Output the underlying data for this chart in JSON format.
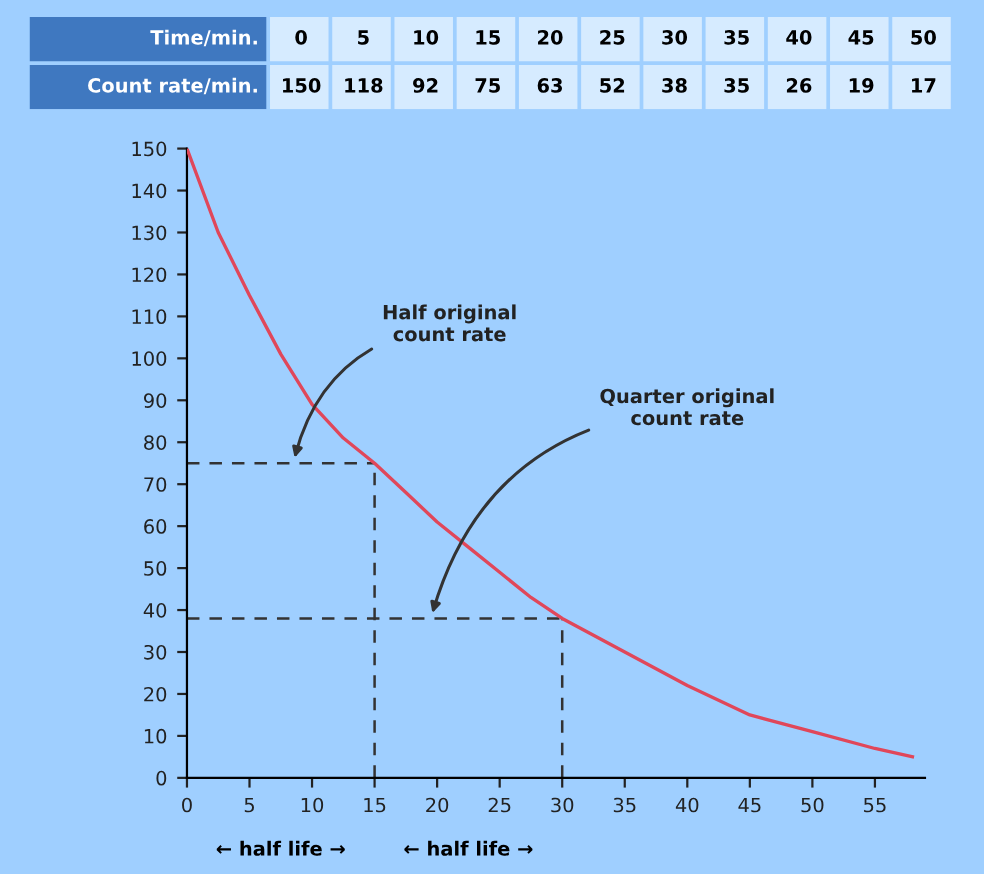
{
  "chart_data": [
    {
      "type": "other",
      "xlabel": "Time/min.",
      "ylabel": "Count rate/min.",
      "categories": [
        "0",
        "5",
        "10",
        "15",
        "20",
        "25",
        "30",
        "35",
        "40",
        "45",
        "50"
      ],
      "values": [
        150,
        118,
        92,
        75,
        63,
        52,
        38,
        35,
        26,
        19,
        17
      ],
      "data_labels": true
    },
    {
      "type": "line",
      "x": [
        0,
        2.5,
        5,
        7.5,
        10,
        12.5,
        15,
        17.5,
        20,
        22.5,
        25,
        27.5,
        30,
        35,
        40,
        45,
        50,
        55,
        58
      ],
      "series": [
        {
          "color": "#e0475a",
          "values": [
            150,
            130,
            115,
            101,
            89,
            81,
            75,
            68,
            61,
            55,
            49,
            43,
            38,
            30,
            22,
            15,
            11,
            7,
            5
          ]
        }
      ],
      "xlim": [
        0,
        59
      ],
      "xticks": [
        0,
        5,
        10,
        15,
        20,
        25,
        30,
        35,
        40,
        45,
        50,
        55
      ],
      "ylim": [
        0,
        150
      ],
      "yticks": [
        0,
        10,
        20,
        30,
        40,
        50,
        60,
        70,
        80,
        90,
        100,
        110,
        120,
        130,
        140,
        150
      ],
      "ref_lines": [
        {
          "axis": "y",
          "value": 75,
          "line_style": "dashed",
          "color": "#333333"
        },
        {
          "axis": "y",
          "value": 38,
          "line_style": "dashed",
          "color": "#333333"
        },
        {
          "axis": "x",
          "value": 15,
          "line_style": "dashed",
          "color": "#333333"
        },
        {
          "axis": "x",
          "value": 30,
          "line_style": "dashed",
          "color": "#333333"
        }
      ],
      "annotations": [
        {
          "text": "Half original\ncount rate",
          "x": 8.5,
          "y": 75
        },
        {
          "text": "Quarter original\ncount rate",
          "x": 19.5,
          "y": 38
        },
        "← half life →",
        "← half life →"
      ],
      "grid": false
    }
  ]
}
